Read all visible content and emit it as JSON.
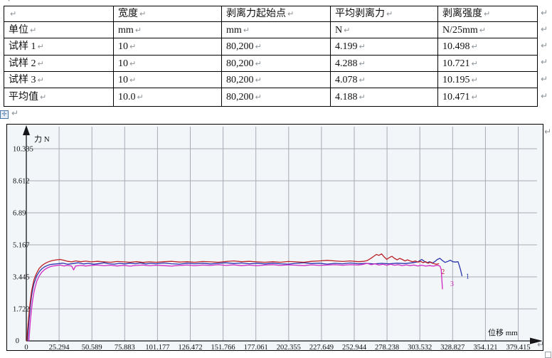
{
  "pilcrow": "↵",
  "table": {
    "header": [
      "",
      "宽度",
      "剥离力起始点",
      "平均剥离力",
      "剥离强度"
    ],
    "rows": [
      [
        "单位",
        "mm",
        "mm",
        "N",
        "N/25mm"
      ],
      [
        "试样 1",
        "10",
        "80,200",
        "4.199",
        "10.498"
      ],
      [
        "试样 2",
        "10",
        "80,200",
        "4.288",
        "10.721"
      ],
      [
        "试样 3",
        "10",
        "80,200",
        "4.078",
        "10.195"
      ],
      [
        "平均值",
        "10.0",
        "80,200",
        "4.188",
        "10.471"
      ]
    ]
  },
  "chart_data": {
    "type": "line",
    "title": "",
    "xlabel": "位移 mm",
    "ylabel": "力 N",
    "xlim": [
      0,
      404.7
    ],
    "ylim": [
      0,
      11.4
    ],
    "grid": true,
    "x_ticks": [
      "0",
      "25.294",
      "50.589",
      "75.883",
      "101.177",
      "126.472",
      "151.766",
      "177.061",
      "202.355",
      "227.649",
      "252.944",
      "278.238",
      "303.532",
      "328.827",
      "354.121",
      "379.415"
    ],
    "y_ticks": [
      "0",
      "1.722",
      "3.445",
      "5.167",
      "6.89",
      "8.612",
      "10.335"
    ],
    "colors": {
      "background": "#f3f6f9",
      "gridline": "#a7acb4",
      "axis": "#15151a"
    },
    "series": [
      {
        "name": "试样1",
        "color": "#2b35ae",
        "end_label": "1",
        "label_at": [
          339,
          3.35
        ],
        "points": [
          [
            1,
            0
          ],
          [
            1.5,
            0.5
          ],
          [
            2,
            1.0
          ],
          [
            3,
            1.8
          ],
          [
            4,
            2.4
          ],
          [
            5,
            2.8
          ],
          [
            6,
            3.1
          ],
          [
            7,
            3.3
          ],
          [
            8,
            3.5
          ],
          [
            10,
            3.72
          ],
          [
            12,
            3.88
          ],
          [
            14,
            3.98
          ],
          [
            16,
            4.05
          ],
          [
            18,
            4.1
          ],
          [
            20,
            4.12
          ],
          [
            24,
            4.15
          ],
          [
            28,
            4.18
          ],
          [
            32,
            4.12
          ],
          [
            36,
            4.16
          ],
          [
            40,
            4.2
          ],
          [
            44,
            4.14
          ],
          [
            48,
            4.17
          ],
          [
            52,
            4.12
          ],
          [
            56,
            4.16
          ],
          [
            60,
            4.2
          ],
          [
            64,
            4.15
          ],
          [
            68,
            4.13
          ],
          [
            72,
            4.17
          ],
          [
            76,
            4.14
          ],
          [
            80,
            4.18
          ],
          [
            84,
            4.15
          ],
          [
            88,
            4.19
          ],
          [
            92,
            4.14
          ],
          [
            96,
            4.17
          ],
          [
            100,
            4.15
          ],
          [
            106,
            4.19
          ],
          [
            112,
            4.15
          ],
          [
            118,
            4.13
          ],
          [
            124,
            4.18
          ],
          [
            130,
            4.15
          ],
          [
            136,
            4.18
          ],
          [
            142,
            4.14
          ],
          [
            148,
            4.17
          ],
          [
            154,
            4.2
          ],
          [
            160,
            4.16
          ],
          [
            166,
            4.19
          ],
          [
            172,
            4.15
          ],
          [
            178,
            4.18
          ],
          [
            184,
            4.14
          ],
          [
            190,
            4.18
          ],
          [
            196,
            4.15
          ],
          [
            202,
            4.13
          ],
          [
            208,
            4.17
          ],
          [
            214,
            4.2
          ],
          [
            220,
            4.16
          ],
          [
            226,
            4.18
          ],
          [
            232,
            4.13
          ],
          [
            238,
            4.17
          ],
          [
            244,
            4.15
          ],
          [
            250,
            4.19
          ],
          [
            256,
            4.15
          ],
          [
            262,
            4.17
          ],
          [
            268,
            4.14
          ],
          [
            274,
            4.17
          ],
          [
            280,
            4.15
          ],
          [
            286,
            4.18
          ],
          [
            292,
            4.16
          ],
          [
            298,
            4.2
          ],
          [
            302,
            4.25
          ],
          [
            305,
            4.38
          ],
          [
            307,
            4.28
          ],
          [
            309,
            4.2
          ],
          [
            311,
            4.26
          ],
          [
            313,
            4.18
          ],
          [
            315,
            4.26
          ],
          [
            317,
            4.38
          ],
          [
            319,
            4.44
          ],
          [
            321,
            4.32
          ],
          [
            323,
            4.22
          ],
          [
            325,
            4.27
          ],
          [
            327,
            4.34
          ],
          [
            329,
            4.26
          ],
          [
            331,
            4.24
          ],
          [
            333,
            4.26
          ],
          [
            334,
            4.05
          ],
          [
            335,
            3.8
          ],
          [
            336,
            3.5
          ]
        ]
      },
      {
        "name": "试样2",
        "color": "#bb2025",
        "end_label": "2",
        "label_at": [
          320,
          3.6
        ],
        "points": [
          [
            0.5,
            0
          ],
          [
            1,
            0.6
          ],
          [
            2,
            1.4
          ],
          [
            3,
            2.1
          ],
          [
            4,
            2.65
          ],
          [
            5,
            3.0
          ],
          [
            6,
            3.3
          ],
          [
            7,
            3.5
          ],
          [
            8,
            3.65
          ],
          [
            10,
            3.9
          ],
          [
            12,
            4.05
          ],
          [
            14,
            4.15
          ],
          [
            16,
            4.22
          ],
          [
            18,
            4.28
          ],
          [
            20,
            4.32
          ],
          [
            23,
            4.36
          ],
          [
            26,
            4.38
          ],
          [
            29,
            4.33
          ],
          [
            32,
            4.28
          ],
          [
            35,
            4.25
          ],
          [
            38,
            4.3
          ],
          [
            42,
            4.26
          ],
          [
            46,
            4.29
          ],
          [
            50,
            4.25
          ],
          [
            55,
            4.28
          ],
          [
            60,
            4.25
          ],
          [
            65,
            4.23
          ],
          [
            70,
            4.27
          ],
          [
            75,
            4.25
          ],
          [
            80,
            4.23
          ],
          [
            85,
            4.26
          ],
          [
            90,
            4.22
          ],
          [
            95,
            4.25
          ],
          [
            100,
            4.23
          ],
          [
            106,
            4.26
          ],
          [
            112,
            4.28
          ],
          [
            118,
            4.24
          ],
          [
            124,
            4.26
          ],
          [
            130,
            4.23
          ],
          [
            136,
            4.27
          ],
          [
            142,
            4.25
          ],
          [
            148,
            4.23
          ],
          [
            154,
            4.27
          ],
          [
            160,
            4.3
          ],
          [
            166,
            4.26
          ],
          [
            172,
            4.28
          ],
          [
            178,
            4.25
          ],
          [
            184,
            4.23
          ],
          [
            190,
            4.26
          ],
          [
            196,
            4.23
          ],
          [
            202,
            4.27
          ],
          [
            208,
            4.25
          ],
          [
            214,
            4.23
          ],
          [
            220,
            4.28
          ],
          [
            226,
            4.3
          ],
          [
            232,
            4.33
          ],
          [
            238,
            4.3
          ],
          [
            244,
            4.27
          ],
          [
            250,
            4.3
          ],
          [
            256,
            4.26
          ],
          [
            260,
            4.28
          ],
          [
            263,
            4.32
          ],
          [
            266,
            4.45
          ],
          [
            268,
            4.55
          ],
          [
            270,
            4.65
          ],
          [
            272,
            4.6
          ],
          [
            274,
            4.68
          ],
          [
            276,
            4.52
          ],
          [
            278,
            4.38
          ],
          [
            280,
            4.48
          ],
          [
            282,
            4.55
          ],
          [
            284,
            4.44
          ],
          [
            286,
            4.36
          ],
          [
            288,
            4.44
          ],
          [
            290,
            4.38
          ],
          [
            292,
            4.3
          ],
          [
            294,
            4.36
          ],
          [
            296,
            4.3
          ],
          [
            298,
            4.26
          ],
          [
            300,
            4.3
          ],
          [
            302,
            4.24
          ],
          [
            304,
            4.28
          ],
          [
            306,
            4.21
          ],
          [
            308,
            4.26
          ],
          [
            310,
            4.18
          ],
          [
            312,
            4.24
          ],
          [
            314,
            4.16
          ],
          [
            316,
            4.12
          ],
          [
            318,
            4.15
          ]
        ]
      },
      {
        "name": "试样3",
        "color": "#cf27c3",
        "end_label": "3",
        "label_at": [
          327,
          2.95
        ],
        "points": [
          [
            2,
            0
          ],
          [
            2.5,
            0.5
          ],
          [
            3,
            1.0
          ],
          [
            4,
            1.7
          ],
          [
            5,
            2.25
          ],
          [
            6,
            2.65
          ],
          [
            7,
            2.95
          ],
          [
            8,
            3.2
          ],
          [
            10,
            3.5
          ],
          [
            12,
            3.7
          ],
          [
            14,
            3.83
          ],
          [
            16,
            3.92
          ],
          [
            18,
            3.98
          ],
          [
            20,
            4.02
          ],
          [
            23,
            4.05
          ],
          [
            26,
            4.08
          ],
          [
            29,
            4.03
          ],
          [
            32,
            4.06
          ],
          [
            35,
            4.02
          ],
          [
            36.5,
            3.82
          ],
          [
            38,
            4.03
          ],
          [
            42,
            4.06
          ],
          [
            46,
            4.03
          ],
          [
            50,
            4.06
          ],
          [
            55,
            4.08
          ],
          [
            60,
            4.04
          ],
          [
            65,
            4.07
          ],
          [
            70,
            4.03
          ],
          [
            75,
            4.06
          ],
          [
            80,
            4.02
          ],
          [
            85,
            4.06
          ],
          [
            90,
            4.08
          ],
          [
            95,
            4.04
          ],
          [
            100,
            4.07
          ],
          [
            106,
            4.05
          ],
          [
            112,
            4.02
          ],
          [
            118,
            4.06
          ],
          [
            124,
            4.08
          ],
          [
            130,
            4.04
          ],
          [
            136,
            4.08
          ],
          [
            142,
            4.06
          ],
          [
            148,
            4.1
          ],
          [
            154,
            4.06
          ],
          [
            160,
            4.09
          ],
          [
            166,
            4.05
          ],
          [
            172,
            4.08
          ],
          [
            178,
            4.04
          ],
          [
            184,
            4.08
          ],
          [
            190,
            4.1
          ],
          [
            196,
            4.06
          ],
          [
            202,
            4.09
          ],
          [
            208,
            4.07
          ],
          [
            214,
            4.05
          ],
          [
            220,
            4.09
          ],
          [
            226,
            4.06
          ],
          [
            232,
            4.08
          ],
          [
            238,
            4.1
          ],
          [
            244,
            4.07
          ],
          [
            250,
            4.1
          ],
          [
            256,
            4.08
          ],
          [
            260,
            4.12
          ],
          [
            263,
            4.17
          ],
          [
            266,
            4.1
          ],
          [
            269,
            4.15
          ],
          [
            272,
            4.08
          ],
          [
            275,
            4.12
          ],
          [
            278,
            4.07
          ],
          [
            281,
            4.12
          ],
          [
            284,
            4.07
          ],
          [
            287,
            4.1
          ],
          [
            290,
            4.05
          ],
          [
            293,
            4.09
          ],
          [
            296,
            4.05
          ],
          [
            299,
            4.08
          ],
          [
            302,
            4.03
          ],
          [
            305,
            4.07
          ],
          [
            308,
            4.02
          ],
          [
            311,
            4.05
          ],
          [
            314,
            4.02
          ],
          [
            317,
            4.07
          ],
          [
            319,
            4.02
          ],
          [
            320,
            3.85
          ],
          [
            321,
            2.8
          ]
        ]
      }
    ]
  }
}
